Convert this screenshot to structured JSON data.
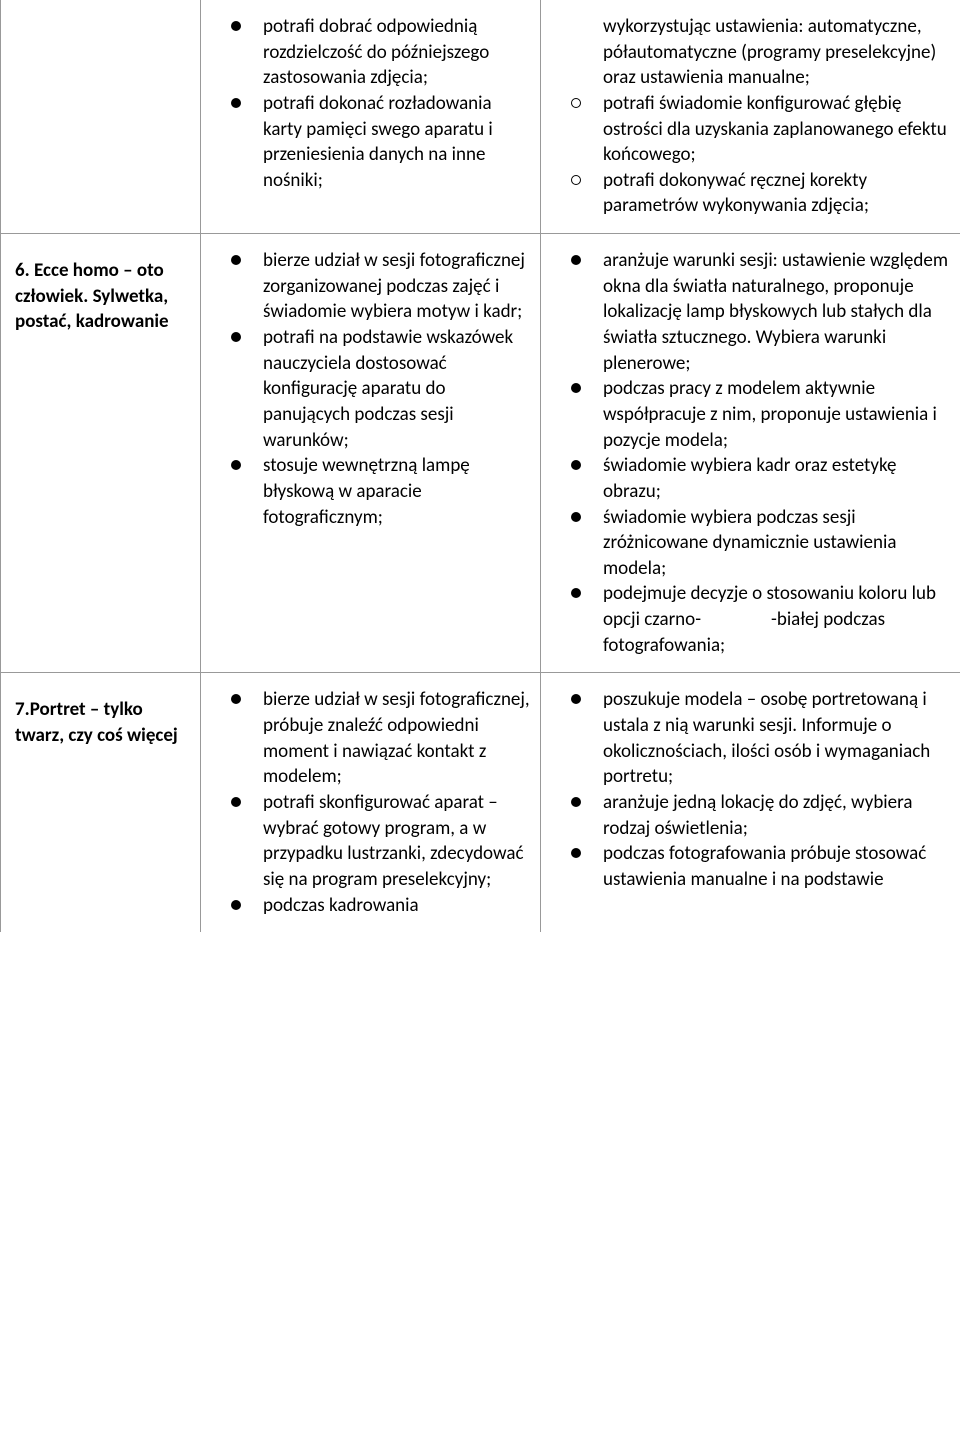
{
  "rows": [
    {
      "title": "",
      "col2": [
        {
          "text": "potrafi dobrać odpowiednią rozdzielczość do późniejszego zastosowania zdjęcia;",
          "style": "solid"
        },
        {
          "text": "potrafi dokonać rozładowania karty pamięci swego aparatu i przeniesienia danych na inne nośniki;",
          "style": "solid"
        }
      ],
      "col3": [
        {
          "text": "wykorzystując ustawienia: automatyczne, półautomatyczne (programy preselekcyjne) oraz ustawienia manualne;",
          "style": "none"
        },
        {
          "text": "potrafi świadomie konfigurować głębię ostrości dla uzyskania zaplanowanego efektu końcowego;",
          "style": "open"
        },
        {
          "text": "potrafi dokonywać ręcznej korekty parametrów wykonywania zdjęcia;",
          "style": "open"
        }
      ]
    },
    {
      "title": "6. Ecce homo – oto człowiek. Sylwetka, postać, kadrowanie",
      "col2": [
        {
          "text": "bierze udział w sesji fotograficznej zorganizowanej podczas zajęć i świadomie wybiera motyw i kadr;",
          "style": "solid"
        },
        {
          "text": "potrafi na podstawie wskazówek nauczyciela dostosować konfigurację aparatu do panujących podczas sesji warunków;",
          "style": "solid"
        },
        {
          "text": "stosuje wewnętrzną lampę błyskową w aparacie fotograficznym;",
          "style": "solid"
        }
      ],
      "col3": [
        {
          "text": "aranżuje warunki sesji: ustawienie względem okna dla światła naturalnego, proponuje lokalizację lamp błyskowych lub stałych dla światła sztucznego. Wybiera warunki plenerowe;",
          "style": "solid"
        },
        {
          "text": "podczas pracy z modelem aktywnie współpracuje z nim, proponuje ustawienia i pozycje modela;",
          "style": "solid"
        },
        {
          "text": "świadomie wybiera kadr oraz estetykę obrazu;",
          "style": "solid"
        },
        {
          "text": "świadomie wybiera podczas sesji zróżnicowane dynamicznie ustawienia modela;",
          "style": "solid"
        },
        {
          "text": "podejmuje decyzje o stosowaniu koloru lub opcji czarno-___GAP___-białej podczas fotografowania;",
          "style": "solid"
        }
      ]
    },
    {
      "title": "7.Portret – tylko twarz, czy coś więcej",
      "col2": [
        {
          "text": "bierze udział w sesji fotograficznej, próbuje znaleźć odpowiedni moment i nawiązać kontakt z modelem;",
          "style": "solid"
        },
        {
          "text": "potrafi skonfigurować aparat – wybrać gotowy program, a w przypadku lustrzanki, zdecydować się na program preselekcyjny;",
          "style": "solid"
        },
        {
          "text": "podczas kadrowania",
          "style": "solid"
        }
      ],
      "col3": [
        {
          "text": "poszukuje modela – osobę portretowaną i ustala z nią warunki sesji. Informuje o okolicznościach, ilości osób i wymaganiach portretu;",
          "style": "solid"
        },
        {
          "text": "aranżuje jedną lokację do zdjęć, wybiera rodzaj oświetlenia;",
          "style": "solid"
        },
        {
          "text": "podczas fotografowania próbuje stosować ustawienia manualne i na podstawie",
          "style": "solid"
        }
      ]
    }
  ]
}
